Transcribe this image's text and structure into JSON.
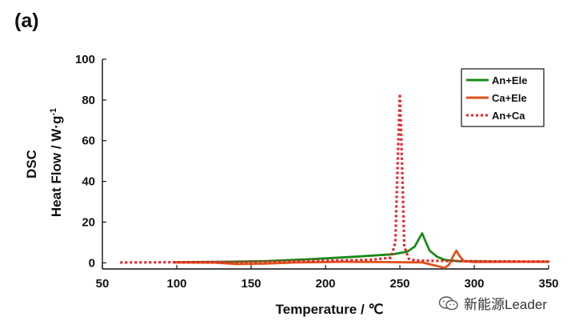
{
  "panel_label": "(a)",
  "watermark": {
    "text": "新能源Leader",
    "icon": "wechat-icon"
  },
  "chart_data": {
    "type": "line",
    "title": "",
    "xlabel": "Temperature / ℃",
    "ylabel_line1": "DSC",
    "ylabel_line2": "Heat Flow / W·g",
    "ylabel_sup": "-1",
    "xlim": [
      50,
      350
    ],
    "ylim": [
      -3,
      100
    ],
    "xticks": [
      50,
      100,
      150,
      200,
      250,
      300,
      350
    ],
    "yticks": [
      0,
      20,
      40,
      60,
      80,
      100
    ],
    "grid": false,
    "legend_position": "top-right",
    "series": [
      {
        "name": "An+Ele",
        "color": "#1a8a1a",
        "style": "solid",
        "x": [
          98,
          130,
          160,
          190,
          220,
          245,
          255,
          260,
          263,
          265,
          267,
          270,
          275,
          280,
          290,
          310,
          350
        ],
        "y": [
          0.3,
          0.5,
          0.9,
          1.8,
          3.0,
          4.2,
          5.5,
          8,
          12,
          14.5,
          11,
          6,
          3,
          1.5,
          0.8,
          0.6,
          0.5
        ]
      },
      {
        "name": "Ca+Ele",
        "color": "#e0521a",
        "style": "solid",
        "x": [
          98,
          125,
          140,
          160,
          180,
          210,
          240,
          265,
          275,
          280,
          283,
          286,
          288,
          290,
          293,
          300,
          320,
          350
        ],
        "y": [
          0.2,
          0.1,
          -0.6,
          -0.4,
          0.2,
          0.5,
          0.4,
          0.2,
          -1.5,
          -2.5,
          -1.0,
          3.5,
          6.0,
          3.5,
          0.8,
          0.4,
          0.5,
          0.6
        ]
      },
      {
        "name": "An+Ca",
        "color": "#e8232a",
        "style": "dotted",
        "x": [
          62,
          100,
          150,
          200,
          230,
          244,
          247,
          249,
          250,
          251,
          253,
          256,
          260,
          270,
          290,
          300,
          320,
          350
        ],
        "y": [
          0.2,
          0.3,
          0.5,
          1.0,
          1.5,
          2.5,
          10,
          60,
          83,
          60,
          8,
          2,
          1.2,
          1.0,
          0.9,
          0.8,
          0.7,
          0.6
        ]
      }
    ]
  }
}
